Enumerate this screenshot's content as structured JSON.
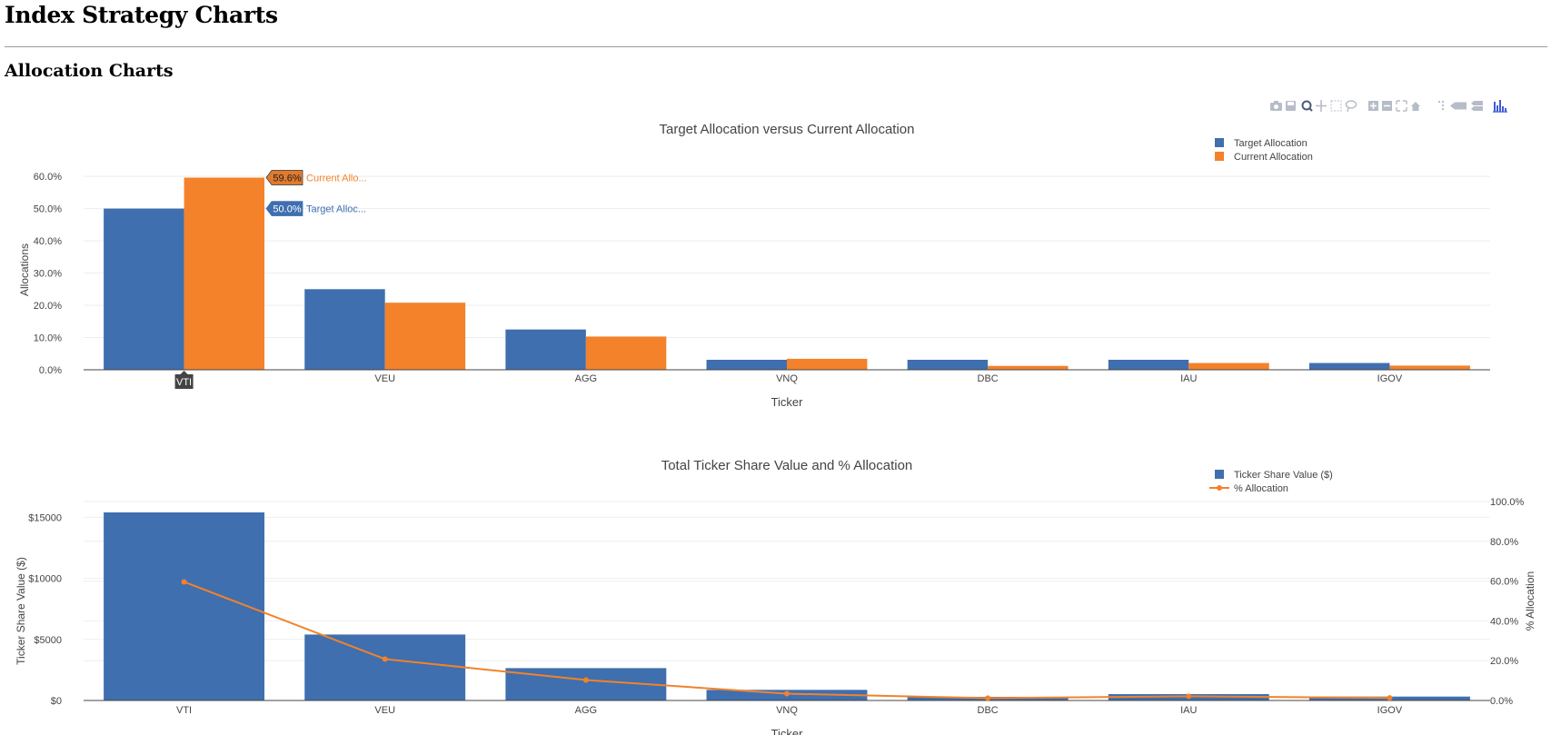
{
  "page": {
    "title": "Index Strategy Charts",
    "section_title": "Allocation Charts"
  },
  "modebar": {
    "icons": [
      "camera-icon",
      "save-icon",
      "zoom-icon",
      "pan-icon",
      "box-select-icon",
      "lasso-icon",
      "zoom-in-icon",
      "zoom-out-icon",
      "autoscale-icon",
      "reset-axes-icon",
      "spikelines-icon",
      "hover-closest-icon",
      "hover-compare-icon",
      "plotly-logo-icon"
    ]
  },
  "colors": {
    "blue": "#3f6faf",
    "orange": "#f3822a",
    "grid": "#eeeeee",
    "text": "#444444"
  },
  "chart_data": [
    {
      "type": "bar",
      "title": "Target Allocation versus Current Allocation",
      "xlabel": "Ticker",
      "ylabel": "Allocations",
      "categories": [
        "VTI",
        "VEU",
        "AGG",
        "VNQ",
        "DBC",
        "IAU",
        "IGOV"
      ],
      "series": [
        {
          "name": "Target Allocation",
          "color": "#3f6faf",
          "values": [
            50.0,
            25.0,
            12.5,
            3.1,
            3.1,
            3.1,
            2.1
          ]
        },
        {
          "name": "Current Allocation",
          "color": "#f3822a",
          "values": [
            59.6,
            20.8,
            10.3,
            3.4,
            1.2,
            2.1,
            1.3
          ]
        }
      ],
      "ylim": [
        0,
        62
      ],
      "yticks": [
        0,
        10,
        20,
        30,
        40,
        50,
        60
      ],
      "ytick_labels": [
        "0.0%",
        "10.0%",
        "20.0%",
        "30.0%",
        "40.0%",
        "50.0%",
        "60.0%"
      ],
      "legend_position": "top-right",
      "hover": {
        "category": "VTI",
        "labels": [
          {
            "value": "59.6%",
            "name": "Current Allo..."
          },
          {
            "value": "50.0%",
            "name": "Target Alloc..."
          }
        ]
      }
    },
    {
      "type": "bar",
      "title": "Total Ticker Share Value and % Allocation",
      "xlabel": "Ticker",
      "ylabel": "Ticker Share Value ($)",
      "y2label": "% Allocation",
      "categories": [
        "VTI",
        "VEU",
        "AGG",
        "VNQ",
        "DBC",
        "IAU",
        "IGOV"
      ],
      "series": [
        {
          "name": "Ticker Share Value ($)",
          "type": "bar",
          "axis": "y",
          "color": "#3f6faf",
          "values": [
            15400,
            5400,
            2650,
            870,
            300,
            520,
            320
          ]
        },
        {
          "name": "% Allocation",
          "type": "line",
          "axis": "y2",
          "color": "#f3822a",
          "values": [
            59.6,
            20.8,
            10.3,
            3.4,
            1.2,
            2.1,
            1.3
          ]
        }
      ],
      "ylim": [
        0,
        15400
      ],
      "yticks": [
        0,
        5000,
        10000,
        15000
      ],
      "ytick_labels": [
        "$0",
        "$5000",
        "$10000",
        "$15000"
      ],
      "y2lim": [
        0,
        100
      ],
      "y2ticks": [
        0,
        20,
        40,
        60,
        80,
        100
      ],
      "y2tick_labels": [
        "0.0%",
        "20.0%",
        "40.0%",
        "60.0%",
        "80.0%",
        "100.0%"
      ],
      "legend_position": "top-right"
    }
  ]
}
